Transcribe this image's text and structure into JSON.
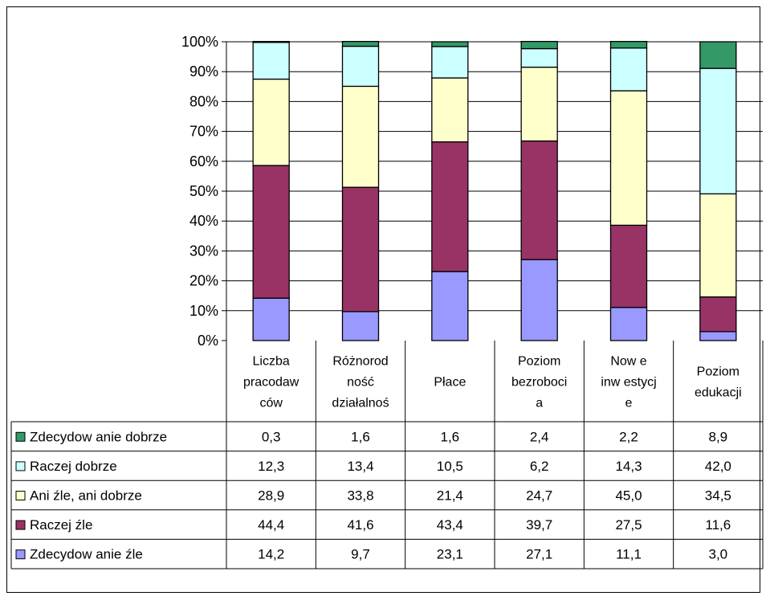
{
  "chart_data": {
    "type": "bar",
    "stacked": true,
    "percent_stacked": true,
    "ylim": [
      0,
      100
    ],
    "yticks": [
      "0%",
      "10%",
      "20%",
      "30%",
      "40%",
      "50%",
      "60%",
      "70%",
      "80%",
      "90%",
      "100%"
    ],
    "grid": true,
    "legend_placement": "data table left",
    "categories": [
      [
        "Liczba",
        "pracodaw",
        "ców"
      ],
      [
        "Różnorod",
        "ność",
        "działalnoś"
      ],
      [
        "Płace"
      ],
      [
        "Poziom",
        "bezroboci",
        "a"
      ],
      [
        "Now e",
        "inw estycj",
        "e"
      ],
      [
        "Poziom",
        "edukacji"
      ]
    ],
    "series": [
      {
        "name": "Zdecydow anie źle",
        "color": "#9999ff",
        "values": [
          14.2,
          9.7,
          23.1,
          27.1,
          11.1,
          3.0
        ]
      },
      {
        "name": "Raczej źle",
        "color": "#993366",
        "values": [
          44.4,
          41.6,
          43.4,
          39.7,
          27.5,
          11.6
        ]
      },
      {
        "name": "Ani źle, ani dobrze",
        "color": "#ffffcc",
        "values": [
          28.9,
          33.8,
          21.4,
          24.7,
          45.0,
          34.5
        ]
      },
      {
        "name": "Raczej dobrze",
        "color": "#ccffff",
        "values": [
          12.3,
          13.4,
          10.5,
          6.2,
          14.3,
          42.0
        ]
      },
      {
        "name": "Zdecydow anie dobrze",
        "color": "#339966",
        "values": [
          0.3,
          1.6,
          1.6,
          2.4,
          2.2,
          8.9
        ]
      }
    ],
    "table_rows": [
      {
        "name": "Zdecydow anie dobrze",
        "cells": [
          "0,3",
          "1,6",
          "1,6",
          "2,4",
          "2,2",
          "8,9"
        ]
      },
      {
        "name": "Raczej dobrze",
        "cells": [
          "12,3",
          "13,4",
          "10,5",
          "6,2",
          "14,3",
          "42,0"
        ]
      },
      {
        "name": "Ani źle, ani dobrze",
        "cells": [
          "28,9",
          "33,8",
          "21,4",
          "24,7",
          "45,0",
          "34,5"
        ]
      },
      {
        "name": "Raczej źle",
        "cells": [
          "44,4",
          "41,6",
          "43,4",
          "39,7",
          "27,5",
          "11,6"
        ]
      },
      {
        "name": "Zdecydow anie źle",
        "cells": [
          "14,2",
          "9,7",
          "23,1",
          "27,1",
          "11,1",
          "3,0"
        ]
      }
    ]
  }
}
